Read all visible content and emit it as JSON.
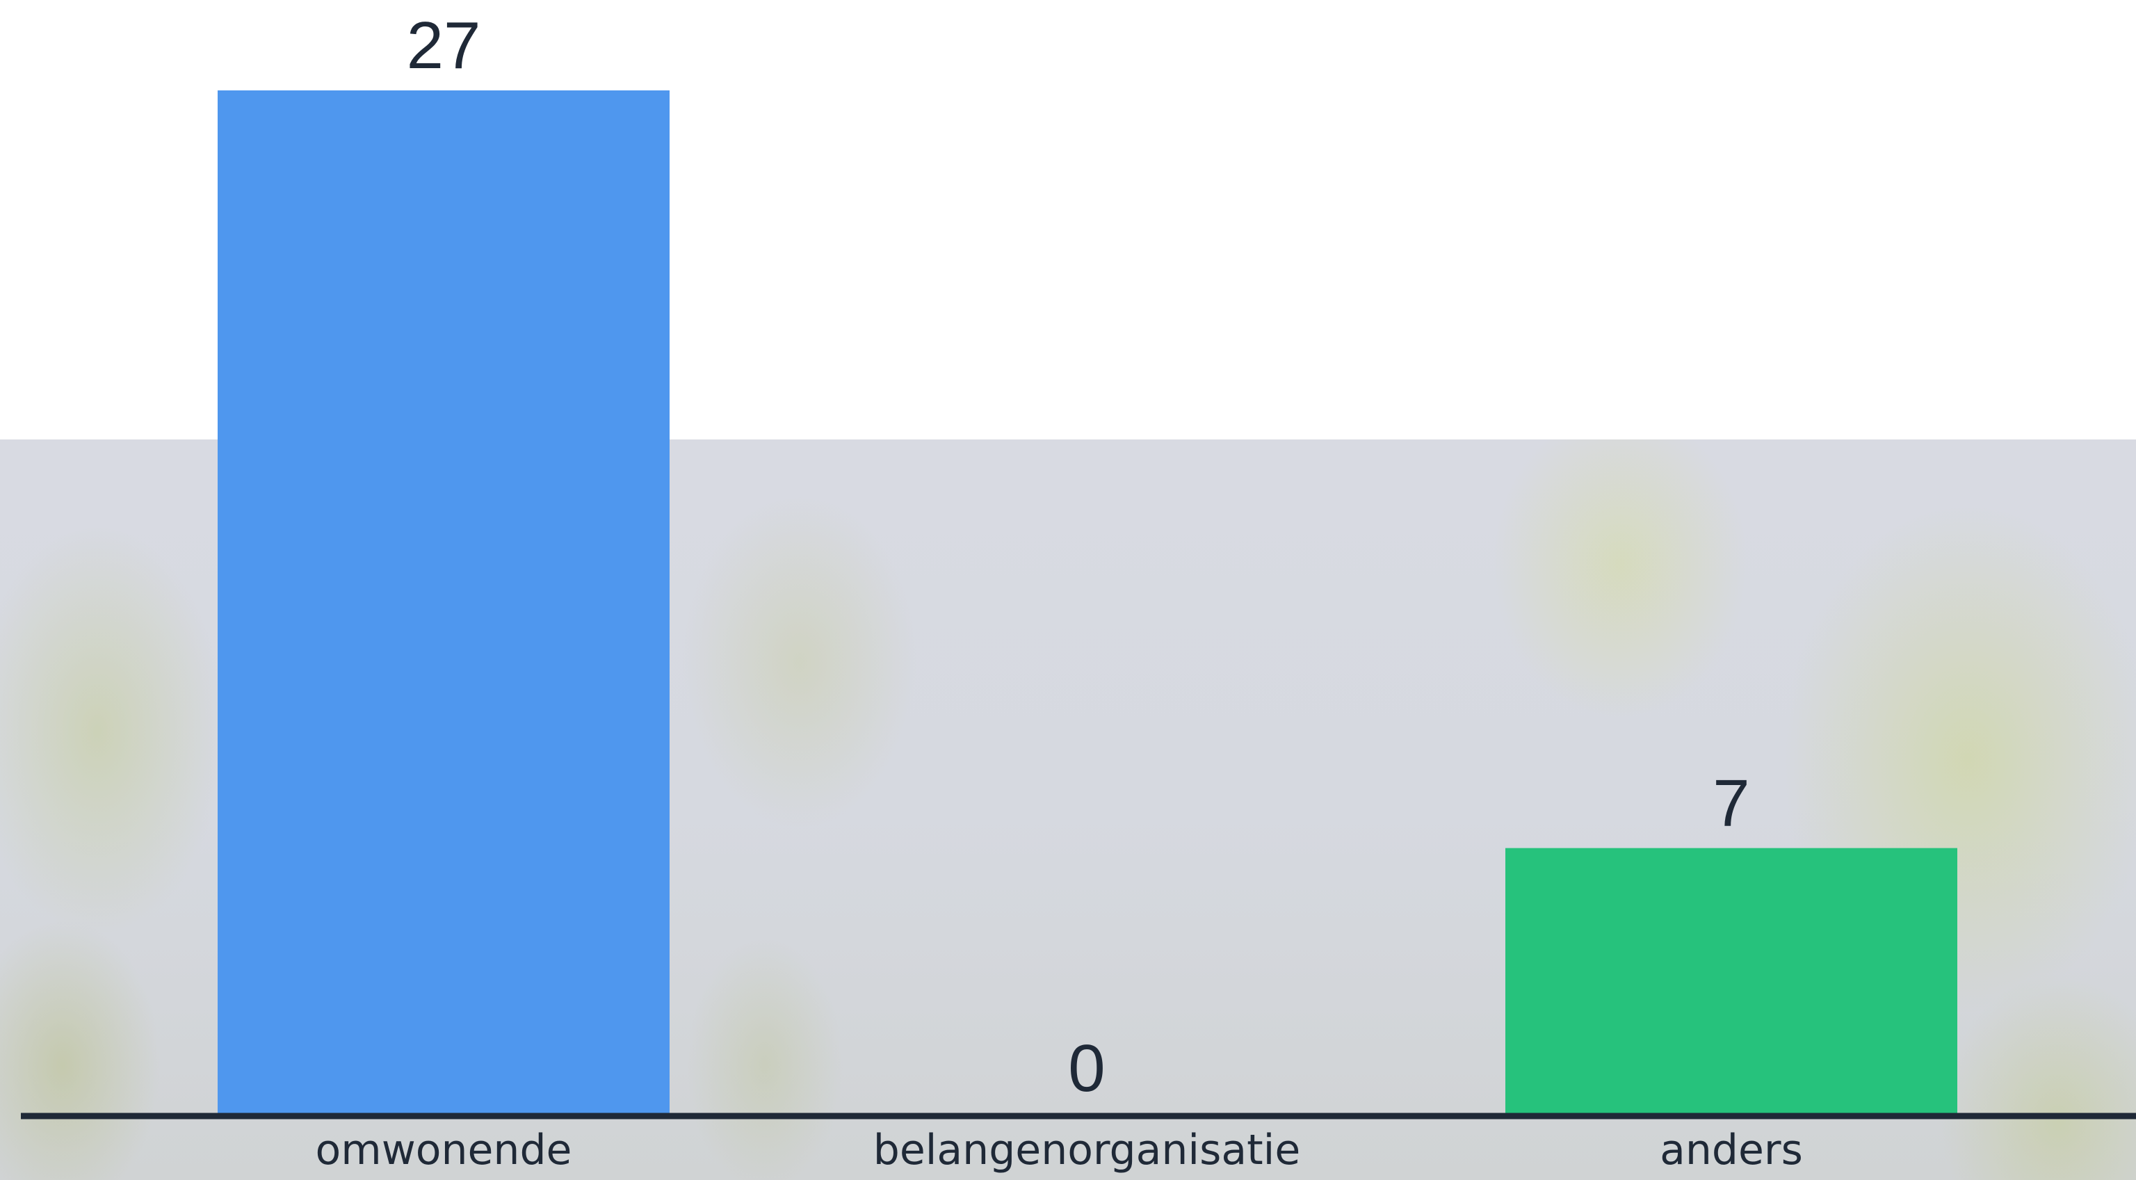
{
  "chart_data": {
    "type": "bar",
    "categories": [
      "omwonende",
      "belangenorganisatie",
      "anders"
    ],
    "values": [
      27,
      0,
      7
    ],
    "colors": [
      "#4f97ee",
      "#e03e3e",
      "#26c27c"
    ],
    "ylim": [
      0,
      27
    ],
    "grid": false,
    "legend": "none",
    "axis_color": "#1f2937"
  }
}
